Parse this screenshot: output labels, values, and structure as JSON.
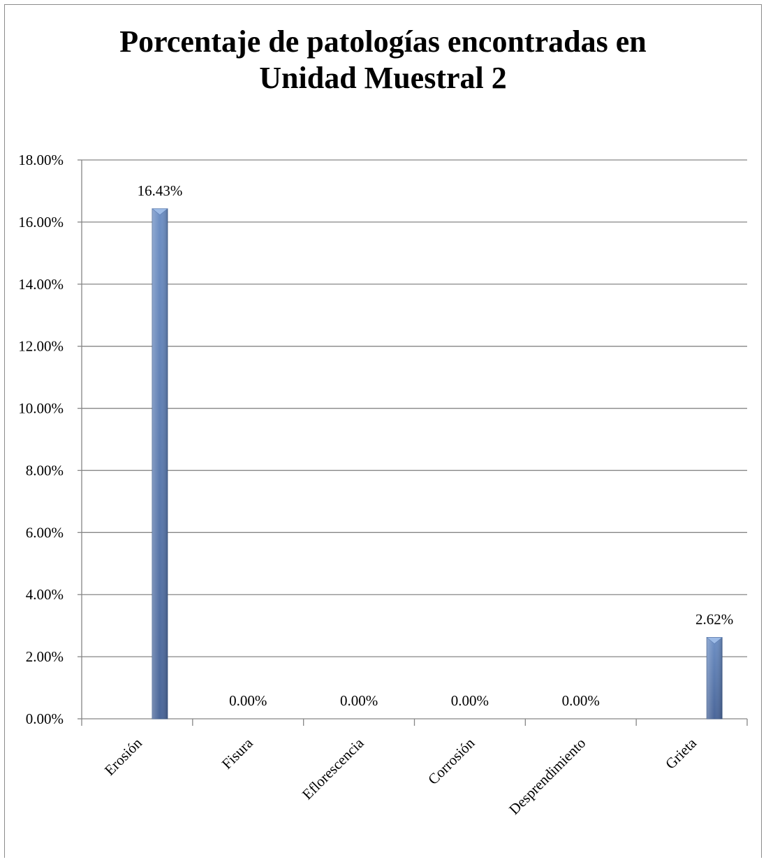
{
  "chart_data": {
    "type": "bar",
    "title_lines": [
      "Porcentaje de patologías encontradas en",
      "Unidad Muestral 2"
    ],
    "categories": [
      "Erosión",
      "Fisura",
      "Eflorescencia",
      "Corrosión",
      "Desprendimiento",
      "Grieta"
    ],
    "values": [
      16.43,
      0.0,
      0.0,
      0.0,
      0.0,
      2.62
    ],
    "data_labels": [
      "16.43%",
      "0.00%",
      "0.00%",
      "0.00%",
      "0.00%",
      "2.62%"
    ],
    "ylim": [
      0,
      18
    ],
    "y_ticks": [
      0,
      2,
      4,
      6,
      8,
      10,
      12,
      14,
      16,
      18
    ],
    "y_tick_labels": [
      "0.00%",
      "2.00%",
      "4.00%",
      "6.00%",
      "8.00%",
      "10.00%",
      "12.00%",
      "14.00%",
      "16.00%",
      "18.00%"
    ],
    "grid": true,
    "legend": "none",
    "colors": {
      "bar_light": "#9dbbe6",
      "bar_mid": "#6d8fc4",
      "bar_dark": "#4a6699",
      "grid": "#868686"
    }
  }
}
